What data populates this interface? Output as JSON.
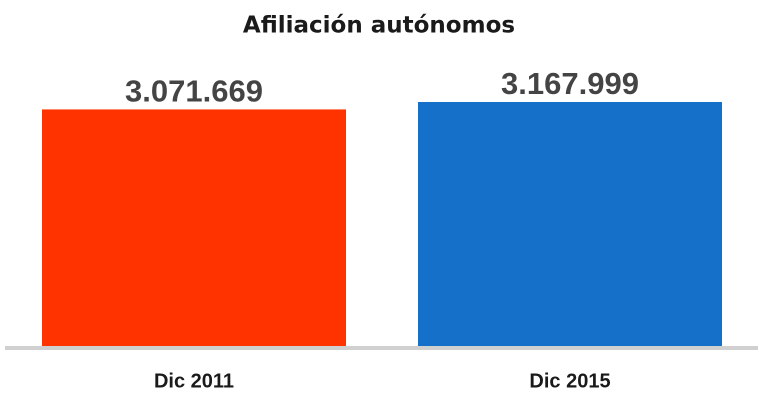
{
  "chart_data": {
    "type": "bar",
    "title": "Afiliación autónomos",
    "categories": [
      "Dic 2011",
      "Dic 2015"
    ],
    "values": [
      3071669,
      3167999
    ],
    "value_labels": [
      "3.071.669",
      "3.167.999"
    ],
    "colors": [
      "#ff3300",
      "#1470c8"
    ]
  }
}
